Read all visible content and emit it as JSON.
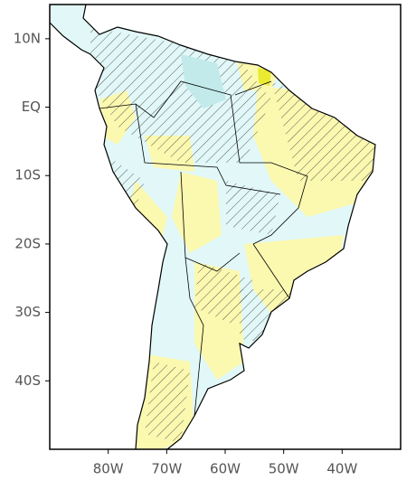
{
  "map": {
    "xlim": [
      -90,
      -30
    ],
    "ylim": [
      -50,
      15
    ],
    "xticks": [
      {
        "value": -80,
        "label": "80W"
      },
      {
        "value": -70,
        "label": "70W"
      },
      {
        "value": -60,
        "label": "60W"
      },
      {
        "value": -50,
        "label": "50W"
      },
      {
        "value": -40,
        "label": "40W"
      }
    ],
    "yticks": [
      {
        "value": 10,
        "label": "10N"
      },
      {
        "value": 0,
        "label": "EQ"
      },
      {
        "value": -10,
        "label": "10S"
      },
      {
        "value": -20,
        "label": "20S"
      },
      {
        "value": -30,
        "label": "30S"
      },
      {
        "value": -40,
        "label": "40S"
      }
    ]
  }
}
